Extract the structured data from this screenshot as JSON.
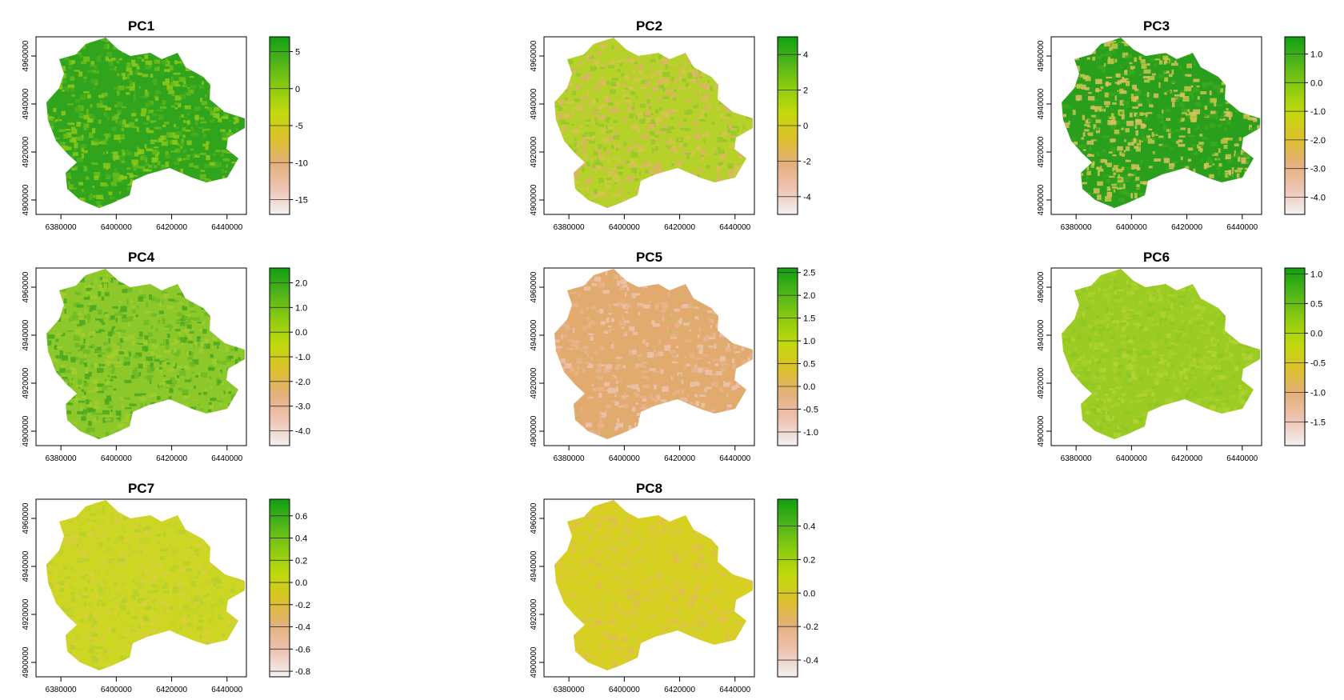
{
  "figure": {
    "background": "#ffffff",
    "frame_color": "#000000"
  },
  "chart_data": [
    {
      "type": "heatmap",
      "title": "PC1",
      "x_ticks": [
        "6380000",
        "6400000",
        "6420000",
        "6440000"
      ],
      "y_ticks": [
        "4900000",
        "4920000",
        "4940000",
        "4960000"
      ],
      "legend_ticks": [
        "5",
        "0",
        "-5",
        "-10",
        "-15"
      ],
      "legend_range": [
        -17,
        7
      ],
      "map_palette": [
        "#2fa41c",
        "#4aaf1e",
        "#6cbc1c",
        "#8cc81a"
      ],
      "legend_colors": [
        "#f2f2f2",
        "#eec4b3",
        "#e3b07c",
        "#dcc02c",
        "#c2d90c",
        "#8ccb10",
        "#4fb41a",
        "#10a010"
      ]
    },
    {
      "type": "heatmap",
      "title": "PC2",
      "x_ticks": [
        "6380000",
        "6400000",
        "6420000",
        "6440000"
      ],
      "y_ticks": [
        "4900000",
        "4920000",
        "4940000",
        "4960000"
      ],
      "legend_ticks": [
        "4",
        "2",
        "0",
        "-2",
        "-4"
      ],
      "legend_range": [
        -5,
        5
      ],
      "map_palette": [
        "#b5d12a",
        "#d3c64a",
        "#e2b26b",
        "#98c82a"
      ],
      "legend_colors": [
        "#f2f2f2",
        "#eec4b3",
        "#e3b07c",
        "#dcc02c",
        "#c2d90c",
        "#8ccb10",
        "#4fb41a",
        "#10a010"
      ]
    },
    {
      "type": "heatmap",
      "title": "PC3",
      "x_ticks": [
        "6380000",
        "6400000",
        "6420000",
        "6440000"
      ],
      "y_ticks": [
        "4900000",
        "4920000",
        "4940000",
        "4960000"
      ],
      "legend_ticks": [
        "1.0",
        "0.0",
        "-1.0",
        "-2.0",
        "-3.0",
        "-4.0"
      ],
      "legend_range": [
        -4.6,
        1.6
      ],
      "map_palette": [
        "#2a9f1e",
        "#3aa81e",
        "#c7c64a",
        "#dcc062"
      ],
      "legend_colors": [
        "#f2f2f2",
        "#eec4b3",
        "#e3b07c",
        "#dcc02c",
        "#c2d90c",
        "#8ccb10",
        "#4fb41a",
        "#10a010"
      ]
    },
    {
      "type": "heatmap",
      "title": "PC4",
      "x_ticks": [
        "6380000",
        "6400000",
        "6420000",
        "6440000"
      ],
      "y_ticks": [
        "4900000",
        "4920000",
        "4940000",
        "4960000"
      ],
      "legend_ticks": [
        "2.0",
        "1.0",
        "0.0",
        "-1.0",
        "-2.0",
        "-3.0",
        "-4.0"
      ],
      "legend_range": [
        -4.6,
        2.6
      ],
      "map_palette": [
        "#8cc82a",
        "#6dbb26",
        "#a3cd2c",
        "#4aa81e"
      ],
      "legend_colors": [
        "#f2f2f2",
        "#eec4b3",
        "#e3b07c",
        "#dcc02c",
        "#c2d90c",
        "#8ccb10",
        "#4fb41a",
        "#10a010"
      ]
    },
    {
      "type": "heatmap",
      "title": "PC5",
      "x_ticks": [
        "6380000",
        "6400000",
        "6420000",
        "6440000"
      ],
      "y_ticks": [
        "4900000",
        "4920000",
        "4940000",
        "4960000"
      ],
      "legend_ticks": [
        "2.5",
        "2.0",
        "1.5",
        "1.0",
        "0.5",
        "0.0",
        "-0.5",
        "-1.0"
      ],
      "legend_range": [
        -1.3,
        2.6
      ],
      "map_palette": [
        "#e3aa70",
        "#e8b48c",
        "#d8b06a",
        "#ebc3ac"
      ],
      "legend_colors": [
        "#f2f2f2",
        "#eec4b3",
        "#e3b07c",
        "#dcc02c",
        "#c2d90c",
        "#8ccb10",
        "#4fb41a",
        "#10a010"
      ]
    },
    {
      "type": "heatmap",
      "title": "PC6",
      "x_ticks": [
        "6380000",
        "6400000",
        "6420000",
        "6440000"
      ],
      "y_ticks": [
        "4900000",
        "4920000",
        "4940000",
        "4960000"
      ],
      "legend_ticks": [
        "1.0",
        "0.5",
        "0.0",
        "-0.5",
        "-1.0",
        "-1.5"
      ],
      "legend_range": [
        -1.9,
        1.1
      ],
      "map_palette": [
        "#9ccc24",
        "#8ec726",
        "#a8cf2a",
        "#b2d232"
      ],
      "legend_colors": [
        "#f2f2f2",
        "#eec4b3",
        "#e3b07c",
        "#dcc02c",
        "#c2d90c",
        "#8ccb10",
        "#4fb41a",
        "#10a010"
      ]
    },
    {
      "type": "heatmap",
      "title": "PC7",
      "x_ticks": [
        "6380000",
        "6400000",
        "6420000",
        "6440000"
      ],
      "y_ticks": [
        "4900000",
        "4920000",
        "4940000",
        "4960000"
      ],
      "legend_ticks": [
        "0.6",
        "0.4",
        "0.2",
        "0.0",
        "-0.2",
        "-0.4",
        "-0.6",
        "-0.8"
      ],
      "legend_range": [
        -0.85,
        0.75
      ],
      "map_palette": [
        "#cdd622",
        "#c2d42a",
        "#b6d02c",
        "#d8cf3e"
      ],
      "legend_colors": [
        "#f2f2f2",
        "#eec4b3",
        "#e3b07c",
        "#dcc02c",
        "#c2d90c",
        "#8ccb10",
        "#4fb41a",
        "#10a010"
      ]
    },
    {
      "type": "heatmap",
      "title": "PC8",
      "x_ticks": [
        "6380000",
        "6400000",
        "6420000",
        "6440000"
      ],
      "y_ticks": [
        "4900000",
        "4920000",
        "4940000",
        "4960000"
      ],
      "legend_ticks": [
        "0.4",
        "0.2",
        "0.0",
        "-0.2",
        "-0.4"
      ],
      "legend_range": [
        -0.5,
        0.56
      ],
      "map_palette": [
        "#d8d020",
        "#dcc83c",
        "#cdd22a",
        "#e2bc54"
      ],
      "legend_colors": [
        "#f2f2f2",
        "#eec4b3",
        "#e3b07c",
        "#dcc02c",
        "#c2d90c",
        "#8ccb10",
        "#4fb41a",
        "#10a010"
      ]
    }
  ]
}
